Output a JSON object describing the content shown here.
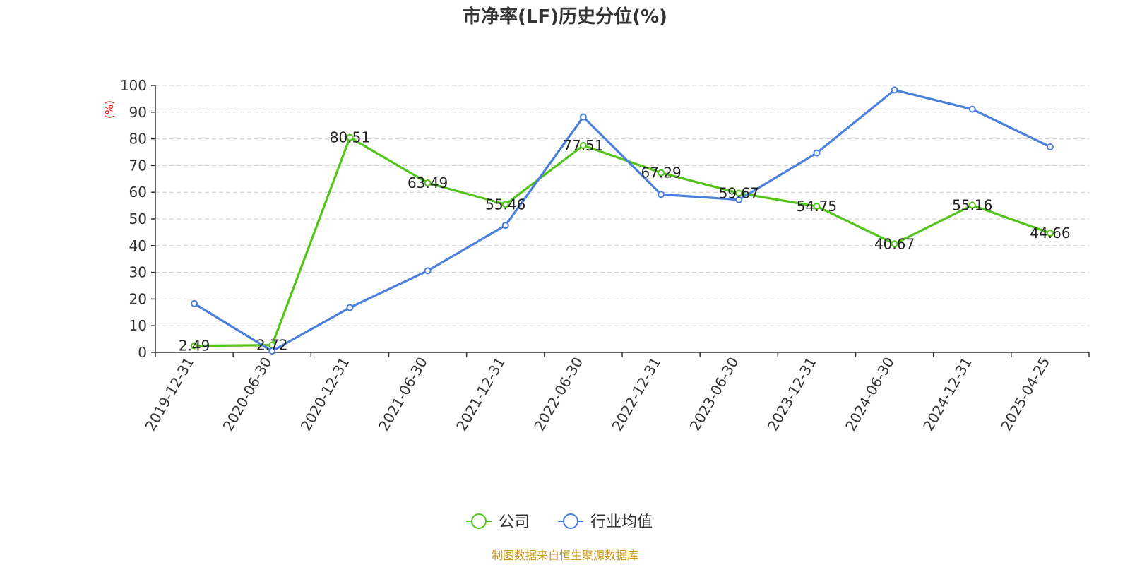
{
  "chart_data": {
    "type": "line",
    "title": "市净率(LF)历史分位(%)",
    "ylabel": "(%)",
    "xlabel": "",
    "ylim": [
      0,
      100
    ],
    "yticks": [
      0,
      10,
      20,
      30,
      40,
      50,
      60,
      70,
      80,
      90,
      100
    ],
    "grid": true,
    "legend_position": "bottom",
    "categories": [
      "2019-12-31",
      "2020-06-30",
      "2020-12-31",
      "2021-06-30",
      "2021-12-31",
      "2022-06-30",
      "2022-12-31",
      "2023-06-30",
      "2023-12-31",
      "2024-06-30",
      "2024-12-31",
      "2025-04-25"
    ],
    "series": [
      {
        "name": "公司",
        "color": "#52c41a",
        "values": [
          2.49,
          2.72,
          80.51,
          63.49,
          55.46,
          77.51,
          67.29,
          59.67,
          54.75,
          40.67,
          55.16,
          44.66
        ],
        "labels": [
          "2.49",
          "2.72",
          "80.51",
          "63.49",
          "55.46",
          "77.51",
          "67.29",
          "59.67",
          "54.75",
          "40.67",
          "55.16",
          "44.66"
        ]
      },
      {
        "name": "行业均值",
        "color": "#4a7fdc",
        "values": [
          18.3,
          0.5,
          16.8,
          30.6,
          47.6,
          88.2,
          59.2,
          57.2,
          74.7,
          98.3,
          91.1,
          77.0
        ]
      }
    ],
    "source": "制图数据来自恒生聚源数据库"
  }
}
